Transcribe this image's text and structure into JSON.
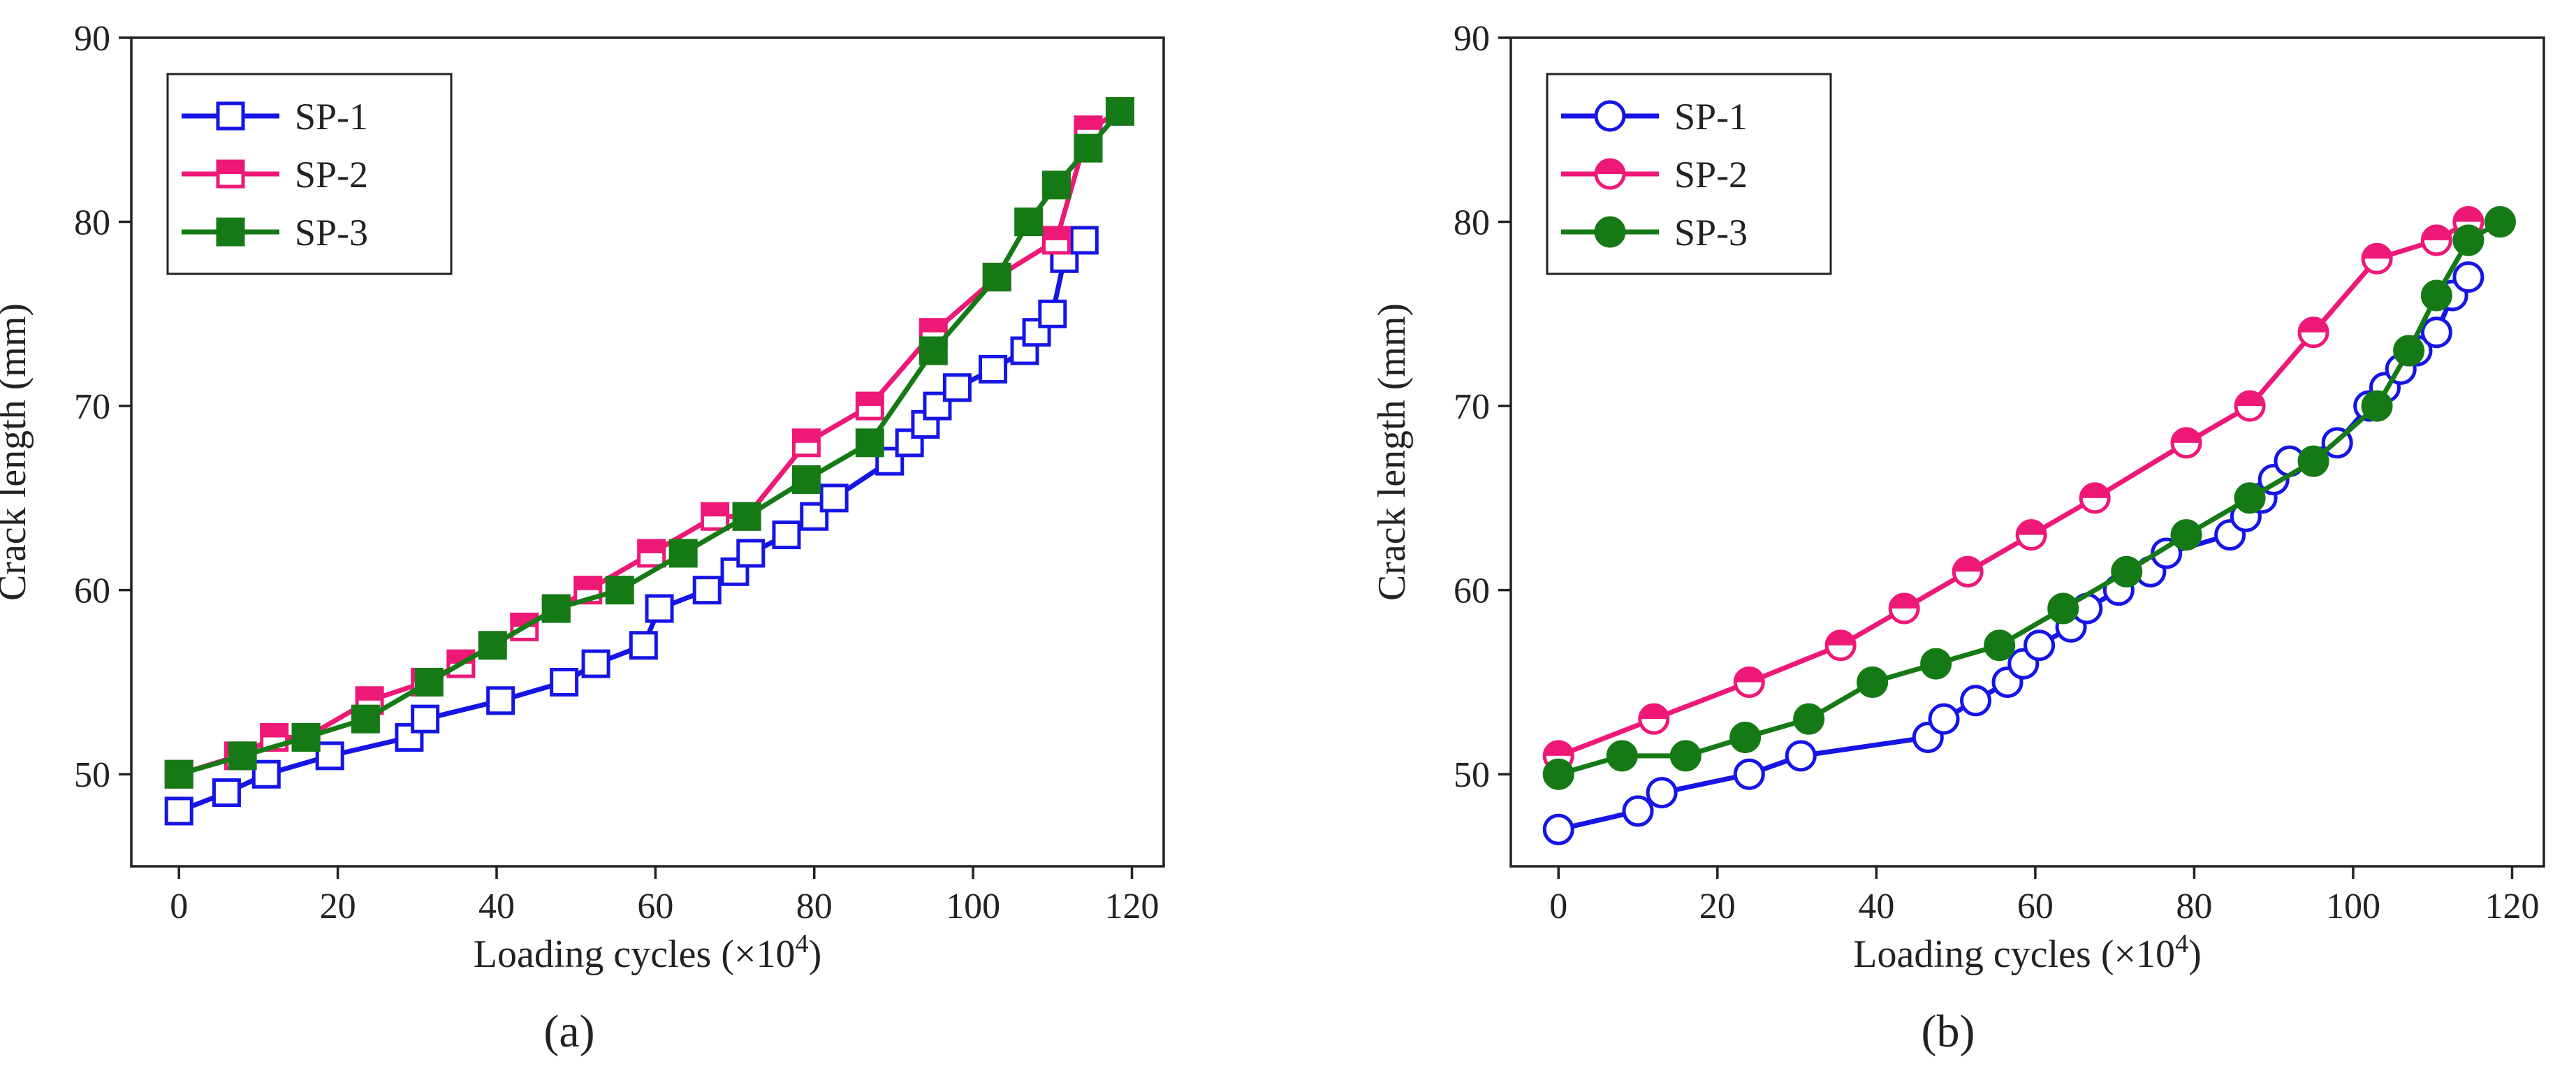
{
  "figure": {
    "panel_labels": [
      "(a)",
      "(b)"
    ]
  },
  "chart_data": [
    {
      "type": "line",
      "panel": "a",
      "label": "(a)",
      "xlabel_prefix": "Loading cycles (×10",
      "xlabel_exp": "4",
      "xlabel_suffix": ")",
      "ylabel": "Crack length (mm)",
      "xlim": [
        -6,
        124
      ],
      "ylim": [
        45,
        90
      ],
      "xticks": [
        0,
        20,
        40,
        60,
        80,
        100,
        120
      ],
      "yticks": [
        50,
        60,
        70,
        80,
        90
      ],
      "legend_position": "top-left",
      "series": [
        {
          "name": "SP-1",
          "color": "#1515e6",
          "marker": "square-open",
          "x": [
            0,
            6,
            11,
            19,
            29,
            31,
            40.5,
            48.5,
            52.5,
            58.5,
            60.5,
            66.5,
            70,
            72,
            76.5,
            80,
            82.5,
            89.5,
            92,
            94,
            95.5,
            98,
            102.5,
            106.5,
            108,
            110,
            111.5,
            114
          ],
          "y": [
            48,
            49,
            50,
            51,
            52,
            53,
            54,
            55,
            56,
            57,
            59,
            60,
            61,
            62,
            63,
            64,
            65,
            67,
            68,
            69,
            70,
            71,
            72,
            73,
            74,
            75,
            78,
            79
          ]
        },
        {
          "name": "SP-2",
          "color": "#ee1877",
          "marker": "square-half",
          "x": [
            0,
            7.5,
            12,
            16,
            24,
            31,
            35.5,
            43.5,
            47.5,
            51.5,
            59.5,
            67.5,
            71.5,
            79,
            87,
            95,
            103,
            110.5,
            114.5,
            118.5
          ],
          "y": [
            50,
            51,
            52,
            52,
            54,
            55,
            56,
            58,
            59,
            60,
            62,
            64,
            64,
            68,
            70,
            74,
            77,
            79,
            85,
            86
          ]
        },
        {
          "name": "SP-3",
          "color": "#157a15",
          "marker": "square-filled",
          "x": [
            0,
            8,
            16,
            23.5,
            31.5,
            39.5,
            47.5,
            55.5,
            63.5,
            71.5,
            79,
            87,
            95,
            103,
            107,
            110.5,
            114.5,
            118.5
          ],
          "y": [
            50,
            51,
            52,
            53,
            55,
            57,
            59,
            60,
            62,
            64,
            66,
            68,
            73,
            77,
            80,
            82,
            84,
            86
          ]
        }
      ]
    },
    {
      "type": "line",
      "panel": "b",
      "label": "(b)",
      "xlabel_prefix": "Loading cycles (×10",
      "xlabel_exp": "4",
      "xlabel_suffix": ")",
      "ylabel": "Crack length (mm)",
      "xlim": [
        -6,
        124
      ],
      "ylim": [
        45,
        90
      ],
      "xticks": [
        0,
        20,
        40,
        60,
        80,
        100,
        120
      ],
      "yticks": [
        50,
        60,
        70,
        80,
        90
      ],
      "legend_position": "top-left",
      "series": [
        {
          "name": "SP-1",
          "color": "#1515e6",
          "marker": "circle-open",
          "x": [
            0,
            10,
            13,
            24,
            30.5,
            46.5,
            48.5,
            52.5,
            56.5,
            58.5,
            60.5,
            64.5,
            66.5,
            70.5,
            74.5,
            76.5,
            84.5,
            86.5,
            88.5,
            90,
            92,
            98,
            102,
            104,
            106,
            108,
            110.5,
            112.5,
            114.5
          ],
          "y": [
            47,
            48,
            49,
            50,
            51,
            52,
            53,
            54,
            55,
            56,
            57,
            58,
            59,
            60,
            61,
            62,
            63,
            64,
            65,
            66,
            67,
            68,
            70,
            71,
            72,
            73,
            74,
            76,
            77
          ]
        },
        {
          "name": "SP-2",
          "color": "#ee1877",
          "marker": "circle-half",
          "x": [
            0,
            12,
            24,
            35.5,
            43.5,
            51.5,
            59.5,
            67.5,
            79,
            87,
            95,
            103,
            110.5,
            114.5
          ],
          "y": [
            51,
            53,
            55,
            57,
            59,
            61,
            63,
            65,
            68,
            70,
            74,
            78,
            79,
            80
          ]
        },
        {
          "name": "SP-3",
          "color": "#157a15",
          "marker": "circle-filled",
          "x": [
            0,
            8,
            16,
            23.5,
            31.5,
            39.5,
            47.5,
            55.5,
            63.5,
            71.5,
            79,
            87,
            95,
            103,
            107,
            110.5,
            114.5,
            118.5
          ],
          "y": [
            50,
            51,
            51,
            52,
            53,
            55,
            56,
            57,
            59,
            61,
            63,
            65,
            67,
            70,
            73,
            76,
            79,
            80
          ]
        }
      ]
    }
  ]
}
